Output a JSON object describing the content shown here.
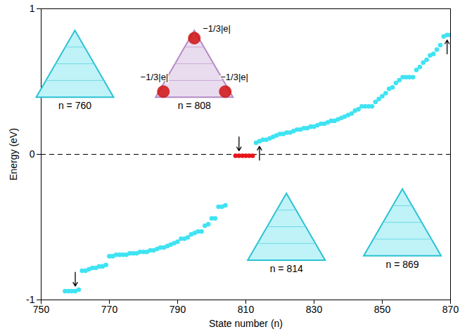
{
  "chart_data": {
    "type": "scatter",
    "x_label": "State number (n)",
    "y_label": "Energy (eV)",
    "xlim": [
      750,
      870
    ],
    "xticks": [
      750,
      770,
      790,
      810,
      830,
      850,
      870
    ],
    "ylim": [
      -1,
      1
    ],
    "yticks": [
      -1,
      0,
      1
    ],
    "reference_line": 0,
    "series": [
      {
        "color": "#3fe3f2",
        "marker": "circle",
        "x": [
          757,
          758,
          759,
          760,
          761,
          762,
          763,
          764,
          765,
          766,
          767,
          768,
          769,
          770,
          771,
          772,
          773,
          774,
          775,
          776,
          777,
          778,
          779,
          780,
          781,
          782,
          783,
          784,
          785,
          786,
          787,
          788,
          789,
          790,
          791,
          792,
          793,
          794,
          795,
          796,
          797,
          798,
          799,
          800,
          801,
          802,
          803,
          804
        ],
        "values": [
          -0.94,
          -0.94,
          -0.94,
          -0.94,
          -0.93,
          -0.8,
          -0.8,
          -0.79,
          -0.78,
          -0.78,
          -0.77,
          -0.77,
          -0.76,
          -0.7,
          -0.7,
          -0.69,
          -0.69,
          -0.69,
          -0.69,
          -0.68,
          -0.68,
          -0.68,
          -0.67,
          -0.67,
          -0.67,
          -0.66,
          -0.66,
          -0.65,
          -0.64,
          -0.64,
          -0.63,
          -0.62,
          -0.61,
          -0.6,
          -0.58,
          -0.58,
          -0.57,
          -0.55,
          -0.54,
          -0.53,
          -0.53,
          -0.49,
          -0.48,
          -0.44,
          -0.44,
          -0.36,
          -0.36,
          -0.35
        ]
      },
      {
        "color": "#e8141b",
        "marker": "circle",
        "x": [
          807,
          808,
          809,
          810,
          811,
          812
        ],
        "values": [
          -0.01,
          -0.01,
          -0.01,
          -0.01,
          -0.01,
          -0.01
        ]
      },
      {
        "color": "#3fe3f2",
        "marker": "circle",
        "x": [
          813,
          814,
          815,
          816,
          817,
          818,
          819,
          820,
          821,
          822,
          823,
          824,
          825,
          826,
          827,
          828,
          829,
          830,
          831,
          832,
          833,
          834,
          835,
          836,
          837,
          838,
          839,
          840,
          841,
          842,
          843,
          844,
          845,
          846,
          847,
          848,
          849,
          850,
          851,
          852,
          853,
          854,
          855,
          856,
          857,
          858,
          859,
          860,
          861,
          862,
          863,
          864,
          865,
          866,
          867,
          868,
          869,
          870
        ],
        "values": [
          0.08,
          0.09,
          0.1,
          0.1,
          0.11,
          0.12,
          0.13,
          0.14,
          0.14,
          0.15,
          0.15,
          0.16,
          0.17,
          0.17,
          0.18,
          0.18,
          0.19,
          0.19,
          0.2,
          0.21,
          0.21,
          0.22,
          0.23,
          0.23,
          0.24,
          0.25,
          0.26,
          0.27,
          0.28,
          0.3,
          0.31,
          0.33,
          0.33,
          0.33,
          0.33,
          0.36,
          0.38,
          0.4,
          0.42,
          0.45,
          0.46,
          0.49,
          0.51,
          0.53,
          0.53,
          0.53,
          0.53,
          0.58,
          0.6,
          0.63,
          0.65,
          0.68,
          0.69,
          0.72,
          0.75,
          0.81,
          0.82,
          0.82
        ]
      }
    ],
    "arrows": [
      {
        "state": 760,
        "direction": "down"
      },
      {
        "state": 808,
        "direction": "down"
      },
      {
        "state": 814,
        "direction": "up"
      },
      {
        "state": 869,
        "direction": "up"
      }
    ],
    "insets": [
      {
        "label": "n = 760",
        "state": 760
      },
      {
        "label": "n = 808",
        "state": 808,
        "charge_labels": [
          "−1/3|e|",
          "−1/3|e|",
          "−1/3|e|"
        ]
      },
      {
        "label": "n = 814",
        "state": 814
      },
      {
        "label": "n = 869",
        "state": 869
      }
    ]
  }
}
